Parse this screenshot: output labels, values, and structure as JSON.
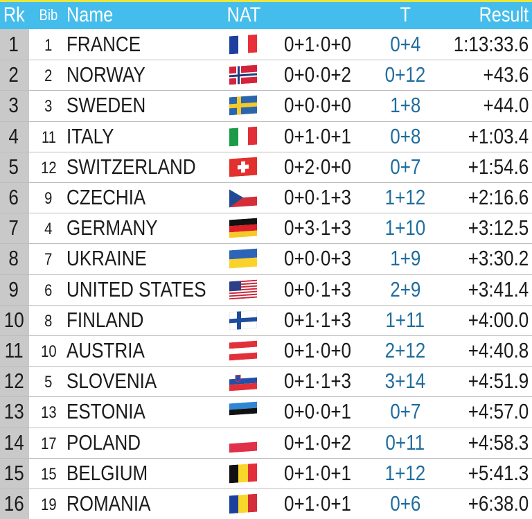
{
  "table": {
    "header": [
      "Rk",
      "Bib",
      "Name",
      "NAT",
      "T",
      "Result"
    ],
    "rows": [
      [
        "1",
        "1",
        "FRANCE",
        "0+1·0+0",
        "0+4",
        "1:13:33.6"
      ],
      [
        "2",
        "2",
        "NORWAY",
        "0+0·0+2",
        "0+12",
        "+43.6"
      ],
      [
        "3",
        "3",
        "SWEDEN",
        "0+0·0+0",
        "1+8",
        "+44.0"
      ],
      [
        "4",
        "11",
        "ITALY",
        "0+1·0+1",
        "0+8",
        "+1:03.4"
      ],
      [
        "5",
        "12",
        "SWITZERLAND",
        "0+2·0+0",
        "0+7",
        "+1:54.6"
      ],
      [
        "6",
        "9",
        "CZECHIA",
        "0+0·1+3",
        "1+12",
        "+2:16.6"
      ],
      [
        "7",
        "4",
        "GERMANY",
        "0+3·1+3",
        "1+10",
        "+3:12.5"
      ],
      [
        "8",
        "7",
        "UKRAINE",
        "0+0·0+3",
        "1+9",
        "+3:30.2"
      ],
      [
        "9",
        "6",
        "UNITED STATES",
        "0+0·1+3",
        "2+9",
        "+3:41.4"
      ],
      [
        "10",
        "8",
        "FINLAND",
        "0+1·1+3",
        "1+11",
        "+4:00.0"
      ],
      [
        "11",
        "10",
        "AUSTRIA",
        "0+1·0+0",
        "2+12",
        "+4:40.8"
      ],
      [
        "12",
        "5",
        "SLOVENIA",
        "0+1·1+3",
        "3+14",
        "+4:51.9"
      ],
      [
        "13",
        "13",
        "ESTONIA",
        "0+0·0+1",
        "0+7",
        "+4:57.0"
      ],
      [
        "14",
        "17",
        "POLAND",
        "0+1·0+2",
        "0+11",
        "+4:58.3"
      ],
      [
        "15",
        "15",
        "BELGIUM",
        "0+1·0+1",
        "1+12",
        "+5:41.3"
      ],
      [
        "16",
        "19",
        "ROMANIA",
        "0+1·0+1",
        "0+6",
        "+6:38.0"
      ]
    ]
  }
}
